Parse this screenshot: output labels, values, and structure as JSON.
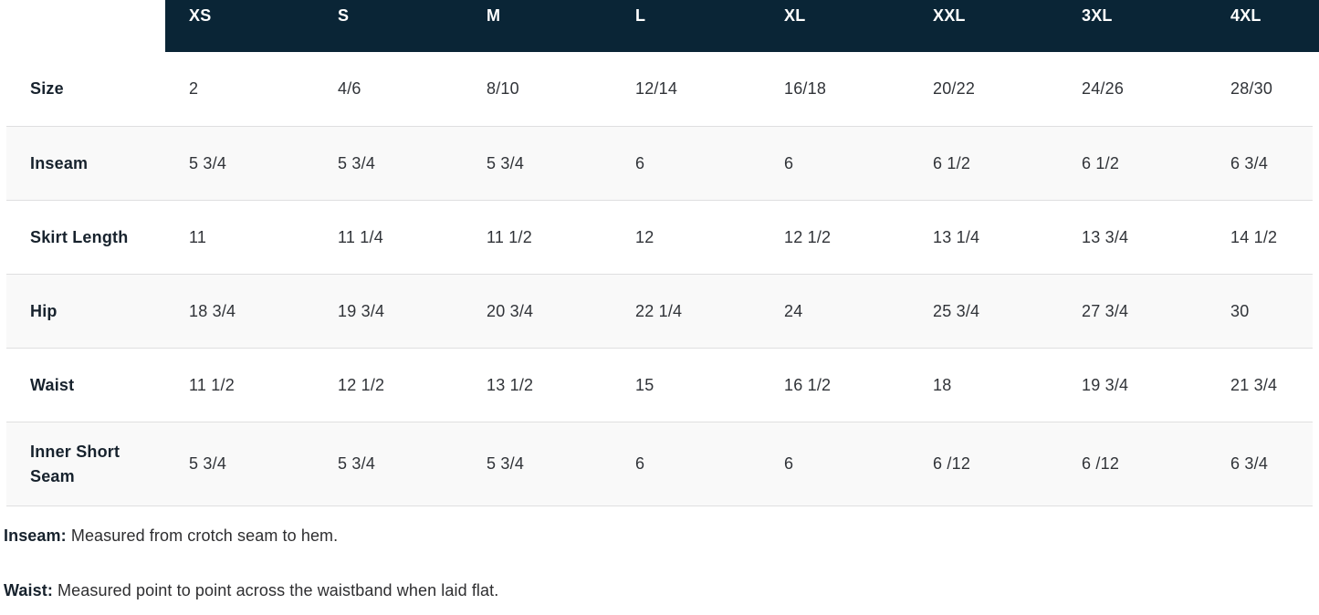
{
  "size_chart": {
    "columns": [
      "XS",
      "S",
      "M",
      "L",
      "XL",
      "XXL",
      "3XL",
      "4XL"
    ],
    "rows": [
      {
        "label": "Size",
        "values": [
          "2",
          "4/6",
          "8/10",
          "12/14",
          "16/18",
          "20/22",
          "24/26",
          "28/30"
        ]
      },
      {
        "label": "Inseam",
        "values": [
          "5 3/4",
          "5 3/4",
          "5 3/4",
          "6",
          "6",
          "6 1/2",
          "6 1/2",
          "6 3/4"
        ]
      },
      {
        "label": "Skirt Length",
        "values": [
          "11",
          "11 1/4",
          "11 1/2",
          "12",
          "12 1/2",
          "13 1/4",
          "13 3/4",
          "14 1/2"
        ]
      },
      {
        "label": "Hip",
        "values": [
          "18 3/4",
          "19 3/4",
          "20 3/4",
          "22 1/4",
          "24",
          "25 3/4",
          "27 3/4",
          "30"
        ]
      },
      {
        "label": "Waist",
        "values": [
          "11 1/2",
          "12 1/2",
          "13 1/2",
          "15",
          "16 1/2",
          "18",
          "19 3/4",
          "21 3/4"
        ]
      },
      {
        "label": "Inner Short Seam",
        "values": [
          "5 3/4",
          "5 3/4",
          "5 3/4",
          "6",
          "6",
          "6 /12",
          "6 /12",
          "6 3/4"
        ]
      }
    ]
  },
  "notes": [
    {
      "term": "Inseam:",
      "text": "Measured from crotch seam to hem."
    },
    {
      "term": "Waist:",
      "text": "Measured point to point across the waistband when laid flat."
    }
  ],
  "colors": {
    "header_bg": "#0a2536",
    "header_text": "#ffffff",
    "stripe_bg": "#f9f9f9",
    "divider": "#dfdfe0",
    "label_text": "#17222d",
    "value_text": "#303338",
    "note_text": "#2e2e30"
  }
}
